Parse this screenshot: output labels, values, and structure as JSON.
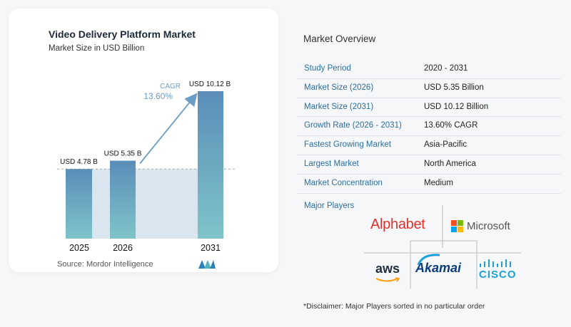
{
  "chart_data": {
    "type": "bar",
    "title": "Video Delivery Platform Market",
    "subtitle": "Market Size in USD Billion",
    "categories": [
      "2025",
      "2026",
      "2031"
    ],
    "values": [
      4.78,
      5.35,
      10.12
    ],
    "data_labels": [
      "USD 4.78 B",
      "USD 5.35 B",
      "USD 10.12 B"
    ],
    "annotation": {
      "label": "CAGR",
      "value": "13.60%"
    },
    "ylim": [
      0,
      10.12
    ],
    "grid": false,
    "colors": {
      "bar_top": "#5b8db8",
      "bar_bottom": "#7fc4c9",
      "ref_fill": "#d9e6ef",
      "arrow": "#6b9cc4"
    }
  },
  "source": "Source:  Mordor Intelligence",
  "overview": {
    "title": "Market Overview",
    "rows": [
      {
        "key": "Study Period",
        "value": "2020 - 2031"
      },
      {
        "key": "Market Size (2026)",
        "value": "USD 5.35 Billion"
      },
      {
        "key": "Market Size (2031)",
        "value": "USD 10.12 Billion"
      },
      {
        "key": "Growth Rate (2026 - 2031)",
        "value": "13.60% CAGR"
      },
      {
        "key": "Fastest Growing Market",
        "value": "Asia-Pacific"
      },
      {
        "key": "Largest Market",
        "value": "North America"
      },
      {
        "key": "Market Concentration",
        "value": "Medium"
      }
    ]
  },
  "players": {
    "title": "Major Players",
    "logos": {
      "alphabet": "Alphabet",
      "microsoft": "Microsoft",
      "aws": "aws",
      "akamai": "Akamai",
      "cisco": "CISCO"
    }
  },
  "disclaimer": "*Disclaimer: Major Players sorted in no particular order"
}
